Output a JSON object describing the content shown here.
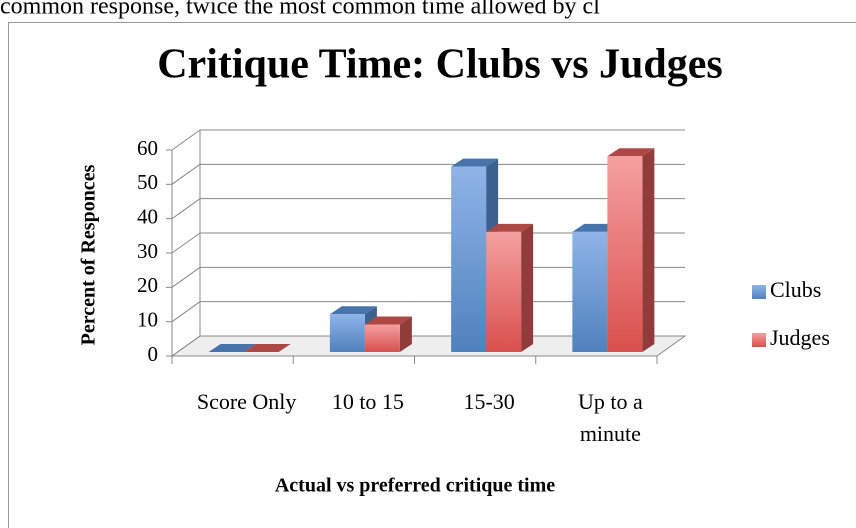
{
  "context_text": "common response, twice the most common time allowed by cl",
  "chart_data": {
    "type": "bar3d",
    "title": "Critique Time:  Clubs vs Judges",
    "x_label": "Actual vs preferred critique time",
    "y_label": "Percent of Responces",
    "categories": [
      "Score Only",
      "10 to 15",
      "15-30",
      "Up to a minute"
    ],
    "series": [
      {
        "name": "Clubs",
        "color": "#4f81bd",
        "values": [
          0,
          11,
          54,
          35
        ]
      },
      {
        "name": "Judges",
        "color": "#c0504d",
        "values": [
          0,
          8,
          35,
          57
        ]
      }
    ],
    "ylim": [
      0,
      60
    ],
    "yticks": [
      0,
      10,
      20,
      30,
      40,
      50,
      60
    ],
    "grid": true,
    "legend": "right"
  }
}
